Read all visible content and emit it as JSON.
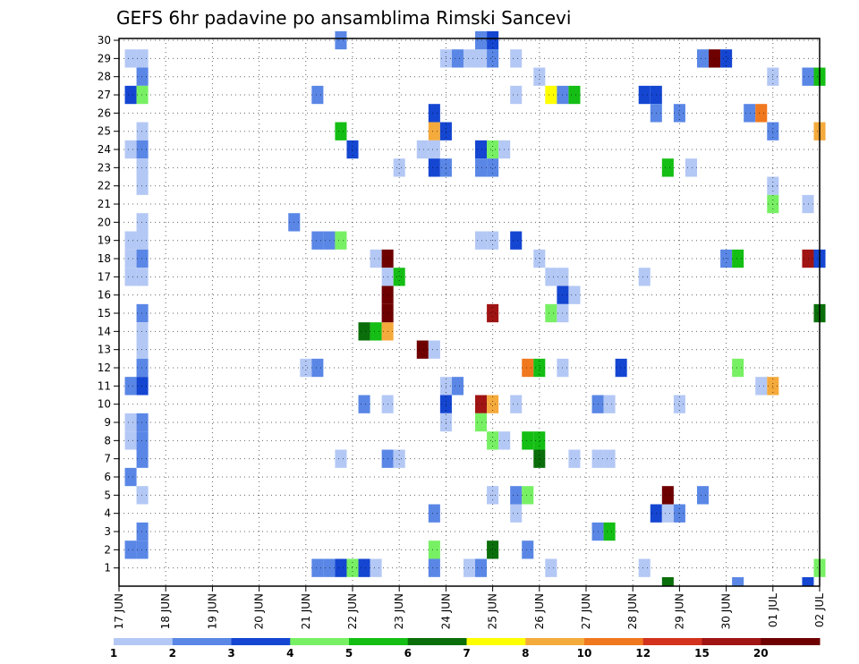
{
  "chart_data": {
    "type": "heatmap",
    "title": "GEFS 6hr padavine po ansamblima Rimski Sancevi",
    "xlabel": "",
    "ylabel": "",
    "x_tick_labels": [
      "17 JUN",
      "18 JUN",
      "19 JUN",
      "20 JUN",
      "21 JUN",
      "22 JUN",
      "23 JUN",
      "24 JUN",
      "25 JUN",
      "26 JUN",
      "27 JUN",
      "28 JUN",
      "29 JUN",
      "30 JUN",
      "01 JUL",
      "02 JUL"
    ],
    "y_tick_labels": [
      "1",
      "2",
      "3",
      "4",
      "5",
      "6",
      "7",
      "8",
      "9",
      "10",
      "11",
      "12",
      "13",
      "14",
      "15",
      "16",
      "17",
      "18",
      "19",
      "20",
      "21",
      "22",
      "23",
      "24",
      "25",
      "26",
      "27",
      "28",
      "29",
      "30"
    ],
    "xlim_days": [
      0,
      15
    ],
    "ylim_members": [
      0,
      30
    ],
    "grid": true,
    "colorbar": {
      "levels": [
        "1",
        "2",
        "3",
        "4",
        "5",
        "6",
        "7",
        "8",
        "10",
        "12",
        "15",
        "20"
      ],
      "colors": [
        "#b4c8f5",
        "#5a87e6",
        "#1446d2",
        "#78f064",
        "#14be14",
        "#0a6e0a",
        "#ffff00",
        "#f5aa3c",
        "#f0781e",
        "#d2321e",
        "#a01414",
        "#6e0000"
      ],
      "placement": "bottom"
    },
    "cells": [
      {
        "day": 0.25,
        "member": 29,
        "value": 1
      },
      {
        "day": 0.5,
        "member": 29,
        "value": 1
      },
      {
        "day": 0.5,
        "member": 28,
        "value": 2
      },
      {
        "day": 0.25,
        "member": 27,
        "value": 3
      },
      {
        "day": 0.5,
        "member": 27,
        "value": 4
      },
      {
        "day": 0.5,
        "member": 25,
        "value": 1
      },
      {
        "day": 0.25,
        "member": 24,
        "value": 1
      },
      {
        "day": 0.5,
        "member": 24,
        "value": 2
      },
      {
        "day": 0.5,
        "member": 23,
        "value": 1
      },
      {
        "day": 0.5,
        "member": 22,
        "value": 1
      },
      {
        "day": 0.5,
        "member": 20,
        "value": 1
      },
      {
        "day": 0.25,
        "member": 19,
        "value": 1
      },
      {
        "day": 0.5,
        "member": 19,
        "value": 1
      },
      {
        "day": 0.25,
        "member": 18,
        "value": 1
      },
      {
        "day": 0.5,
        "member": 18,
        "value": 2
      },
      {
        "day": 0.25,
        "member": 17,
        "value": 1
      },
      {
        "day": 0.5,
        "member": 17,
        "value": 1
      },
      {
        "day": 0.5,
        "member": 15,
        "value": 2
      },
      {
        "day": 0.5,
        "member": 14,
        "value": 1
      },
      {
        "day": 0.5,
        "member": 13,
        "value": 1
      },
      {
        "day": 0.5,
        "member": 12,
        "value": 2
      },
      {
        "day": 0.25,
        "member": 11,
        "value": 2
      },
      {
        "day": 0.5,
        "member": 11,
        "value": 3
      },
      {
        "day": 0.25,
        "member": 9,
        "value": 1
      },
      {
        "day": 0.5,
        "member": 9,
        "value": 2
      },
      {
        "day": 0.25,
        "member": 8,
        "value": 1
      },
      {
        "day": 0.5,
        "member": 8,
        "value": 2
      },
      {
        "day": 0.5,
        "member": 7,
        "value": 2
      },
      {
        "day": 0.25,
        "member": 6,
        "value": 2
      },
      {
        "day": 0.5,
        "member": 5,
        "value": 1
      },
      {
        "day": 0.5,
        "member": 3,
        "value": 2
      },
      {
        "day": 0.25,
        "member": 2,
        "value": 2
      },
      {
        "day": 0.5,
        "member": 2,
        "value": 2
      },
      {
        "day": 3.75,
        "member": 20,
        "value": 2
      },
      {
        "day": 4.25,
        "member": 27,
        "value": 2
      },
      {
        "day": 4.25,
        "member": 19,
        "value": 2
      },
      {
        "day": 4.5,
        "member": 19,
        "value": 2
      },
      {
        "day": 4.75,
        "member": 19,
        "value": 4
      },
      {
        "day": 4.0,
        "member": 12,
        "value": 1
      },
      {
        "day": 4.25,
        "member": 12,
        "value": 2
      },
      {
        "day": 4.75,
        "member": 7,
        "value": 1
      },
      {
        "day": 4.25,
        "member": 1,
        "value": 2
      },
      {
        "day": 4.5,
        "member": 1,
        "value": 2
      },
      {
        "day": 4.75,
        "member": 1,
        "value": 3
      },
      {
        "day": 5.0,
        "member": 1,
        "value": 4
      },
      {
        "day": 5.25,
        "member": 1,
        "value": 3
      },
      {
        "day": 5.5,
        "member": 1,
        "value": 1
      },
      {
        "day": 4.75,
        "member": 30,
        "value": 2
      },
      {
        "day": 4.75,
        "member": 25,
        "value": 5
      },
      {
        "day": 5.0,
        "member": 24,
        "value": 3
      },
      {
        "day": 5.25,
        "member": 14,
        "value": 6
      },
      {
        "day": 5.5,
        "member": 14,
        "value": 5
      },
      {
        "day": 5.75,
        "member": 14,
        "value": 8
      },
      {
        "day": 5.25,
        "member": 10,
        "value": 2
      },
      {
        "day": 5.75,
        "member": 10,
        "value": 1
      },
      {
        "day": 5.75,
        "member": 7,
        "value": 2
      },
      {
        "day": 6.0,
        "member": 7,
        "value": 1
      },
      {
        "day": 5.5,
        "member": 18,
        "value": 1
      },
      {
        "day": 5.75,
        "member": 18,
        "value": 20
      },
      {
        "day": 5.75,
        "member": 17,
        "value": 1
      },
      {
        "day": 6.0,
        "member": 17,
        "value": 5
      },
      {
        "day": 5.75,
        "member": 16,
        "value": 20
      },
      {
        "day": 5.75,
        "member": 15,
        "value": 20
      },
      {
        "day": 6.0,
        "member": 23,
        "value": 1
      },
      {
        "day": 6.75,
        "member": 26,
        "value": 3
      },
      {
        "day": 6.75,
        "member": 25,
        "value": 8
      },
      {
        "day": 7.0,
        "member": 25,
        "value": 3
      },
      {
        "day": 6.5,
        "member": 24,
        "value": 1
      },
      {
        "day": 6.75,
        "member": 24,
        "value": 1
      },
      {
        "day": 6.75,
        "member": 23,
        "value": 3
      },
      {
        "day": 7.0,
        "member": 23,
        "value": 2
      },
      {
        "day": 6.5,
        "member": 13,
        "value": 20
      },
      {
        "day": 6.75,
        "member": 13,
        "value": 1
      },
      {
        "day": 7.0,
        "member": 11,
        "value": 1
      },
      {
        "day": 7.25,
        "member": 11,
        "value": 2
      },
      {
        "day": 7.0,
        "member": 10,
        "value": 3
      },
      {
        "day": 7.0,
        "member": 9,
        "value": 1
      },
      {
        "day": 6.75,
        "member": 4,
        "value": 2
      },
      {
        "day": 6.75,
        "member": 2,
        "value": 4
      },
      {
        "day": 6.75,
        "member": 1,
        "value": 2
      },
      {
        "day": 7.0,
        "member": 29,
        "value": 1
      },
      {
        "day": 7.25,
        "member": 29,
        "value": 2
      },
      {
        "day": 7.5,
        "member": 29,
        "value": 1
      },
      {
        "day": 7.75,
        "member": 29,
        "value": 1
      },
      {
        "day": 8.0,
        "member": 29,
        "value": 2
      },
      {
        "day": 7.75,
        "member": 30,
        "value": 2
      },
      {
        "day": 8.0,
        "member": 30,
        "value": 3
      },
      {
        "day": 7.75,
        "member": 24,
        "value": 3
      },
      {
        "day": 8.0,
        "member": 24,
        "value": 4
      },
      {
        "day": 8.25,
        "member": 24,
        "value": 1
      },
      {
        "day": 7.75,
        "member": 23,
        "value": 2
      },
      {
        "day": 8.0,
        "member": 23,
        "value": 2
      },
      {
        "day": 7.75,
        "member": 10,
        "value": 15
      },
      {
        "day": 8.0,
        "member": 10,
        "value": 8
      },
      {
        "day": 7.75,
        "member": 9,
        "value": 4
      },
      {
        "day": 8.0,
        "member": 8,
        "value": 4
      },
      {
        "day": 8.25,
        "member": 8,
        "value": 1
      },
      {
        "day": 8.0,
        "member": 15,
        "value": 15
      },
      {
        "day": 7.5,
        "member": 1,
        "value": 1
      },
      {
        "day": 7.75,
        "member": 1,
        "value": 2
      },
      {
        "day": 8.0,
        "member": 2,
        "value": 6
      },
      {
        "day": 7.75,
        "member": 19,
        "value": 1
      },
      {
        "day": 8.0,
        "member": 19,
        "value": 1
      },
      {
        "day": 8.0,
        "member": 5,
        "value": 1
      },
      {
        "day": 8.5,
        "member": 19,
        "value": 3
      },
      {
        "day": 8.5,
        "member": 29,
        "value": 1
      },
      {
        "day": 8.5,
        "member": 27,
        "value": 1
      },
      {
        "day": 8.5,
        "member": 10,
        "value": 1
      },
      {
        "day": 8.5,
        "member": 5,
        "value": 2
      },
      {
        "day": 8.75,
        "member": 5,
        "value": 4
      },
      {
        "day": 8.5,
        "member": 4,
        "value": 1
      },
      {
        "day": 8.75,
        "member": 2,
        "value": 2
      },
      {
        "day": 8.75,
        "member": 8,
        "value": 5
      },
      {
        "day": 9.0,
        "member": 8,
        "value": 5
      },
      {
        "day": 9.0,
        "member": 7,
        "value": 6
      },
      {
        "day": 8.75,
        "member": 12,
        "value": 10
      },
      {
        "day": 9.0,
        "member": 12,
        "value": 5
      },
      {
        "day": 9.0,
        "member": 28,
        "value": 1
      },
      {
        "day": 9.0,
        "member": 18,
        "value": 1
      },
      {
        "day": 9.25,
        "member": 17,
        "value": 1
      },
      {
        "day": 9.5,
        "member": 17,
        "value": 1
      },
      {
        "day": 9.5,
        "member": 16,
        "value": 3
      },
      {
        "day": 9.75,
        "member": 16,
        "value": 1
      },
      {
        "day": 9.25,
        "member": 15,
        "value": 4
      },
      {
        "day": 9.5,
        "member": 15,
        "value": 1
      },
      {
        "day": 9.25,
        "member": 27,
        "value": 7
      },
      {
        "day": 9.5,
        "member": 27,
        "value": 2
      },
      {
        "day": 9.75,
        "member": 27,
        "value": 5
      },
      {
        "day": 9.25,
        "member": 1,
        "value": 1
      },
      {
        "day": 9.5,
        "member": 12,
        "value": 1
      },
      {
        "day": 9.75,
        "member": 7,
        "value": 1
      },
      {
        "day": 10.25,
        "member": 7,
        "value": 1
      },
      {
        "day": 10.5,
        "member": 7,
        "value": 1
      },
      {
        "day": 10.25,
        "member": 10,
        "value": 2
      },
      {
        "day": 10.5,
        "member": 10,
        "value": 1
      },
      {
        "day": 10.25,
        "member": 3,
        "value": 2
      },
      {
        "day": 10.5,
        "member": 3,
        "value": 5
      },
      {
        "day": 10.75,
        "member": 12,
        "value": 3
      },
      {
        "day": 11.25,
        "member": 27,
        "value": 3
      },
      {
        "day": 11.5,
        "member": 27,
        "value": 3
      },
      {
        "day": 11.25,
        "member": 17,
        "value": 1
      },
      {
        "day": 11.5,
        "member": 26,
        "value": 2
      },
      {
        "day": 11.5,
        "member": 4,
        "value": 3
      },
      {
        "day": 11.75,
        "member": 4,
        "value": 1
      },
      {
        "day": 12.0,
        "member": 4,
        "value": 2
      },
      {
        "day": 11.25,
        "member": 1,
        "value": 1
      },
      {
        "day": 11.75,
        "member": 23,
        "value": 5
      },
      {
        "day": 11.75,
        "member": 5,
        "value": 20
      },
      {
        "day": 12.0,
        "member": 26,
        "value": 2
      },
      {
        "day": 12.0,
        "member": 10,
        "value": 1
      },
      {
        "day": 12.25,
        "member": 23,
        "value": 1
      },
      {
        "day": 12.5,
        "member": 5,
        "value": 2
      },
      {
        "day": 12.5,
        "member": 29,
        "value": 2
      },
      {
        "day": 12.75,
        "member": 29,
        "value": 20
      },
      {
        "day": 13.0,
        "member": 29,
        "value": 3
      },
      {
        "day": 13.0,
        "member": 18,
        "value": 2
      },
      {
        "day": 13.25,
        "member": 18,
        "value": 5
      },
      {
        "day": 13.25,
        "member": 12,
        "value": 4
      },
      {
        "day": 13.5,
        "member": 26,
        "value": 2
      },
      {
        "day": 13.75,
        "member": 26,
        "value": 10
      },
      {
        "day": 13.75,
        "member": 11,
        "value": 1
      },
      {
        "day": 14.0,
        "member": 11,
        "value": 8
      },
      {
        "day": 14.0,
        "member": 28,
        "value": 1
      },
      {
        "day": 14.0,
        "member": 25,
        "value": 2
      },
      {
        "day": 14.0,
        "member": 22,
        "value": 1
      },
      {
        "day": 14.0,
        "member": 21,
        "value": 4
      },
      {
        "day": 14.75,
        "member": 28,
        "value": 2
      },
      {
        "day": 15.0,
        "member": 28,
        "value": 5
      },
      {
        "day": 15.0,
        "member": 25,
        "value": 8
      },
      {
        "day": 14.75,
        "member": 21,
        "value": 1
      },
      {
        "day": 14.75,
        "member": 18,
        "value": 15
      },
      {
        "day": 15.0,
        "member": 18,
        "value": 3
      },
      {
        "day": 15.0,
        "member": 15,
        "value": 6
      },
      {
        "day": 15.0,
        "member": 1,
        "value": 4
      }
    ],
    "bottom_edge_cells": [
      {
        "day": 11.75,
        "value": 6
      },
      {
        "day": 13.25,
        "value": 2
      },
      {
        "day": 14.75,
        "value": 3
      }
    ]
  }
}
